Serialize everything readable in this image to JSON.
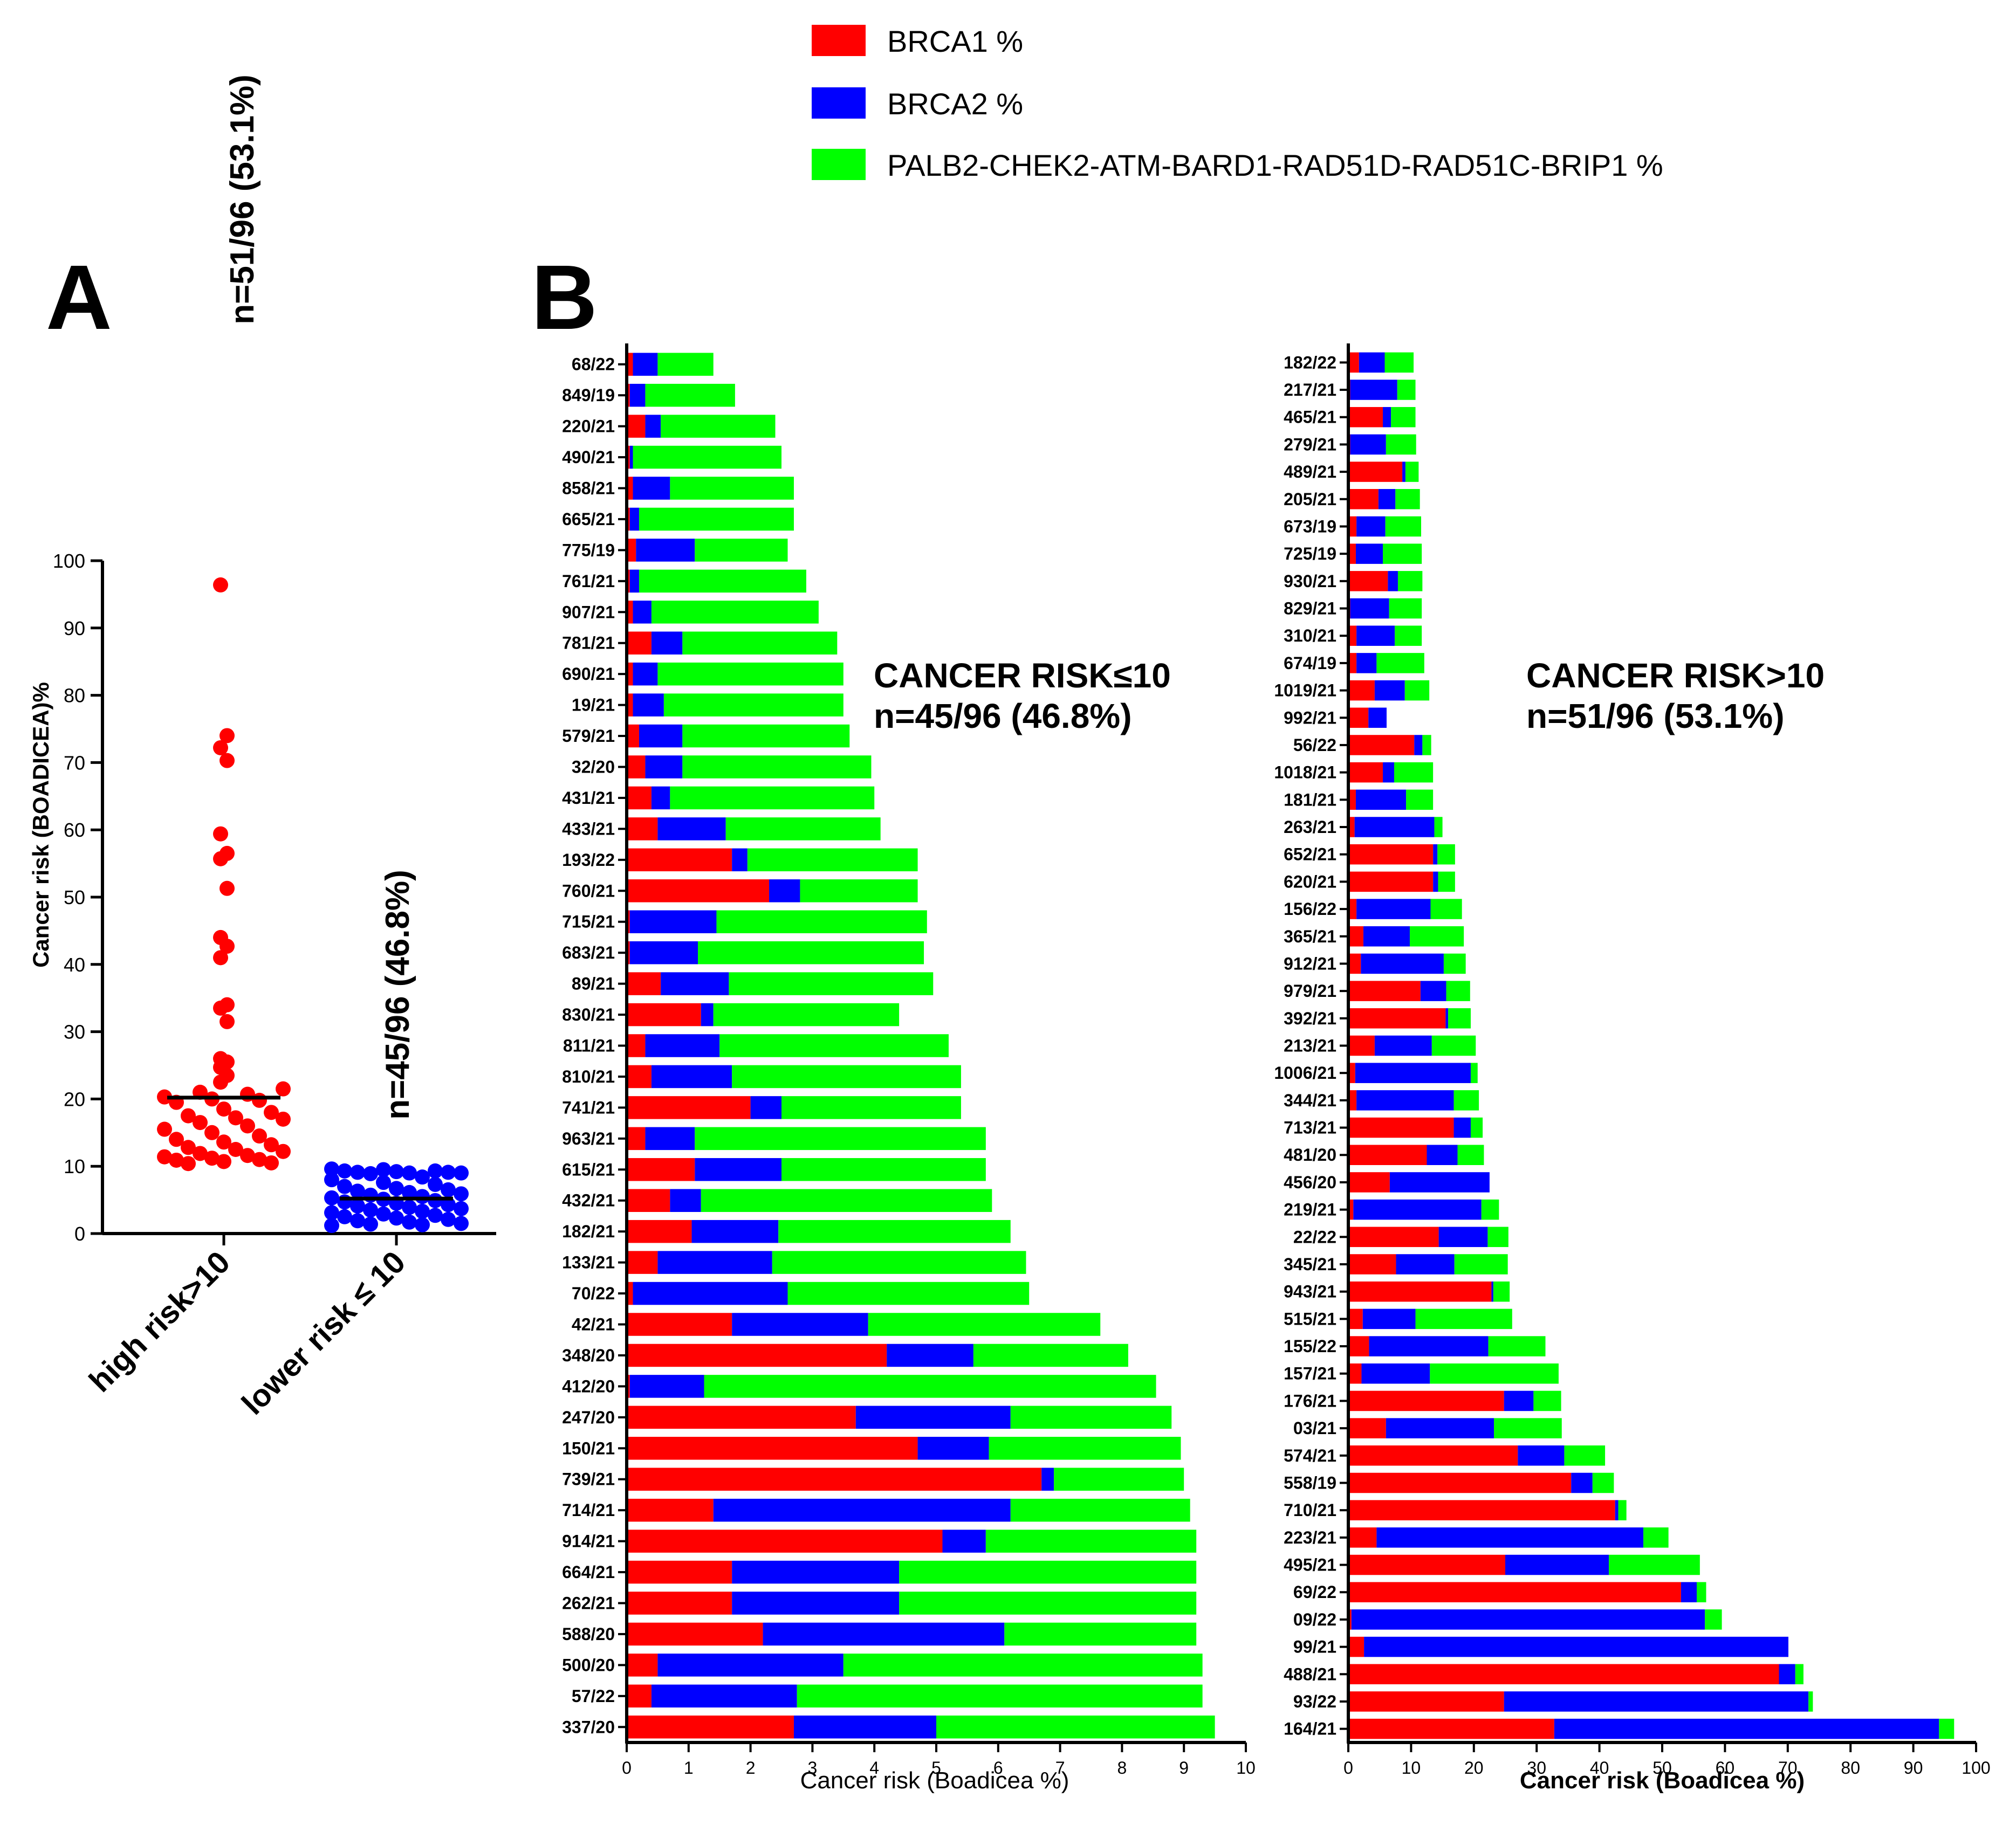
{
  "colors": {
    "brca1": "#ff0000",
    "brca2": "#0000ff",
    "other": "#00ff00",
    "axis": "#000000"
  },
  "legend": {
    "brca1": "BRCA1 %",
    "brca2": "BRCA2 %",
    "other": "PALB2-CHEK2-ATM-BARD1-RAD51D-RAD51C-BRIP1 %"
  },
  "panel_a_letter": "A",
  "panel_b_letter": "B",
  "panel_b": {
    "low_annotation": {
      "line1": "CANCER RISK≤10",
      "line2": "n=45/96 (46.8%)"
    },
    "high_annotation": {
      "line1": "CANCER RISK>10",
      "line2": "n=51/96 (53.1%)"
    }
  },
  "chart_data": [
    {
      "type": "scatter",
      "id": "panel-a",
      "ylabel": "Cancer risk (BOADICEA)%",
      "ylim": [
        0,
        100
      ],
      "yticks": [
        0,
        10,
        20,
        30,
        40,
        50,
        60,
        70,
        80,
        90,
        100
      ],
      "categories": [
        "high risk>10",
        "lower risk ≤ 10"
      ],
      "group_labels": [
        "n=51/96 (53.1%)",
        "n=45/96 (46.8%)"
      ],
      "medians": [
        20.2,
        5.2
      ],
      "series": [
        {
          "name": "high risk>10",
          "color": "#ff0000",
          "values": [
            96.4,
            74,
            72.2,
            70.3,
            59.4,
            56.5,
            55.7,
            51.3,
            44,
            42.7,
            41,
            34,
            33.5,
            31.5,
            26,
            25.5,
            24.7,
            23.5,
            22.5,
            21.5,
            21,
            20.7,
            20.3,
            20,
            19.8,
            19.5,
            18.5,
            18,
            17.5,
            17.2,
            17,
            16.5,
            16,
            15.5,
            15,
            14.5,
            14,
            13.6,
            13.2,
            12.8,
            12.5,
            12.2,
            11.9,
            11.6,
            11.4,
            11.2,
            11,
            10.9,
            10.7,
            10.5,
            10.4
          ]
        },
        {
          "name": "lower risk ≤ 10",
          "color": "#0000ff",
          "values": [
            9.6,
            9.5,
            9.3,
            9.3,
            9.2,
            9.1,
            9.1,
            9.0,
            9.0,
            8.9,
            8.4,
            8.0,
            7.6,
            7.3,
            7.0,
            6.7,
            6.5,
            6.3,
            6.1,
            5.9,
            5.7,
            5.5,
            5.3,
            5.1,
            4.9,
            4.7,
            4.5,
            4.3,
            4.1,
            3.9,
            3.7,
            3.5,
            3.3,
            3.1,
            2.9,
            2.7,
            2.5,
            2.3,
            2.1,
            1.9,
            1.7,
            1.5,
            1.4,
            1.3,
            1.2
          ]
        }
      ]
    },
    {
      "type": "bar",
      "orientation": "horizontal",
      "stacked": true,
      "id": "panel-b-low",
      "xlabel": "Cancer risk (Boadicea %)",
      "xlim": [
        0,
        10
      ],
      "xticks": [
        0,
        1,
        2,
        3,
        4,
        5,
        6,
        7,
        8,
        9,
        10
      ],
      "categories": [
        "68/22",
        "849/19",
        "220/21",
        "490/21",
        "858/21",
        "665/21",
        "775/19",
        "761/21",
        "907/21",
        "781/21",
        "690/21",
        "19/21",
        "579/21",
        "32/20",
        "431/21",
        "433/21",
        "193/22",
        "760/21",
        "715/21",
        "683/21",
        "89/21",
        "830/21",
        "811/21",
        "810/21",
        "741/21",
        "963/21",
        "615/21",
        "432/21",
        "182/21",
        "133/21",
        "70/22",
        "42/21",
        "348/20",
        "412/20",
        "247/20",
        "150/21",
        "739/21",
        "714/21",
        "914/21",
        "664/21",
        "262/21",
        "588/20",
        "500/20",
        "57/22",
        "337/20"
      ],
      "series": [
        {
          "name": "BRCA1 %",
          "color": "#ff0000",
          "values": [
            0.1,
            0.05,
            0.3,
            0.05,
            0.1,
            0.05,
            0.15,
            0.05,
            0.1,
            0.4,
            0.1,
            0.1,
            0.2,
            0.3,
            0.4,
            0.5,
            1.7,
            2.3,
            0.05,
            0.05,
            0.55,
            1.2,
            0.3,
            0.4,
            2.0,
            0.3,
            1.1,
            0.7,
            1.05,
            0.5,
            0.1,
            1.7,
            4.2,
            0.05,
            3.7,
            4.7,
            6.7,
            1.4,
            5.1,
            1.7,
            1.7,
            2.2,
            0.5,
            0.4,
            2.7
          ]
        },
        {
          "name": "BRCA2 %",
          "color": "#0000ff",
          "values": [
            0.4,
            0.25,
            0.25,
            0.05,
            0.6,
            0.15,
            0.95,
            0.15,
            0.3,
            0.5,
            0.4,
            0.5,
            0.7,
            0.6,
            0.3,
            1.1,
            0.25,
            0.5,
            1.4,
            1.1,
            1.1,
            0.2,
            1.2,
            1.3,
            0.5,
            0.8,
            1.4,
            0.5,
            1.4,
            1.85,
            2.5,
            2.2,
            1.4,
            1.2,
            2.5,
            1.15,
            0.2,
            4.8,
            0.7,
            2.7,
            2.7,
            3.9,
            3.0,
            2.35,
            2.3
          ]
        },
        {
          "name": "PALB2-CHEK2-ATM-BARD1-RAD51D-RAD51C-BRIP1 %",
          "color": "#00ff00",
          "values": [
            0.9,
            1.45,
            1.85,
            2.4,
            2.0,
            2.5,
            1.5,
            2.7,
            2.7,
            2.5,
            3.0,
            2.9,
            2.7,
            3.05,
            3.3,
            2.5,
            2.75,
            1.9,
            3.4,
            3.65,
            3.3,
            3.0,
            3.7,
            3.7,
            2.9,
            4.7,
            3.3,
            4.7,
            3.75,
            4.1,
            3.9,
            3.75,
            2.5,
            7.3,
            2.6,
            3.1,
            2.1,
            2.9,
            3.4,
            4.8,
            4.8,
            3.1,
            5.8,
            6.55,
            4.5
          ]
        }
      ]
    },
    {
      "type": "bar",
      "orientation": "horizontal",
      "stacked": true,
      "id": "panel-b-high",
      "xlabel": "Cancer risk (Boadicea %)",
      "xlim": [
        0,
        100
      ],
      "xticks": [
        0,
        10,
        20,
        30,
        40,
        50,
        60,
        70,
        80,
        90,
        100
      ],
      "categories": [
        "182/22",
        "217/21",
        "465/21",
        "279/21",
        "489/21",
        "205/21",
        "673/19",
        "725/19",
        "930/21",
        "829/21",
        "310/21",
        "674/19",
        "1019/21",
        "992/21",
        "56/22",
        "1018/21",
        "181/21",
        "263/21",
        "652/21",
        "620/21",
        "156/22",
        "365/21",
        "912/21",
        "979/21",
        "392/21",
        "213/21",
        "1006/21",
        "344/21",
        "713/21",
        "481/20",
        "456/20",
        "219/21",
        "22/22",
        "345/21",
        "943/21",
        "515/21",
        "155/22",
        "157/21",
        "176/21",
        "03/21",
        "574/21",
        "558/19",
        "710/21",
        "223/21",
        "495/21",
        "69/22",
        "09/22",
        "99/21",
        "488/21",
        "93/22",
        "164/21"
      ],
      "series": [
        {
          "name": "BRCA1 %",
          "color": "#ff0000",
          "values": [
            1.7,
            0.3,
            5.5,
            0.3,
            8.6,
            4.8,
            1.3,
            1.2,
            6.3,
            0.3,
            1.3,
            1.3,
            4.2,
            3.2,
            10.5,
            5.5,
            1.2,
            1.0,
            13.5,
            13.5,
            1.3,
            2.4,
            2.0,
            11.5,
            15.5,
            4.2,
            1.1,
            1.3,
            16.8,
            12.5,
            6.6,
            0.8,
            14.4,
            7.6,
            22.8,
            2.3,
            3.3,
            2.1,
            24.8,
            6.0,
            27.0,
            35.5,
            42.5,
            4.5,
            25.0,
            53.0,
            0.5,
            2.5,
            68.6,
            24.8,
            32.8
          ]
        },
        {
          "name": "BRCA2 %",
          "color": "#0000ff",
          "values": [
            4.1,
            7.5,
            1.3,
            5.7,
            0.5,
            2.7,
            4.6,
            4.3,
            1.6,
            6.2,
            6.1,
            3.2,
            4.8,
            2.9,
            1.3,
            1.8,
            8.0,
            12.7,
            0.7,
            0.8,
            11.8,
            7.4,
            13.2,
            4.1,
            0.4,
            9.1,
            18.4,
            15.5,
            2.7,
            4.9,
            15.9,
            20.4,
            7.8,
            9.3,
            0.3,
            8.4,
            19.0,
            10.9,
            4.7,
            17.2,
            7.4,
            3.4,
            0.5,
            42.5,
            16.5,
            2.5,
            56.3,
            67.6,
            2.6,
            48.5,
            61.3
          ]
        },
        {
          "name": "PALB2-CHEK2-ATM-BARD1-RAD51D-RAD51C-BRIP1 %",
          "color": "#00ff00",
          "values": [
            4.6,
            2.9,
            3.9,
            4.8,
            2.1,
            3.9,
            5.7,
            6.2,
            3.9,
            5.2,
            4.3,
            7.6,
            3.9,
            0.0,
            1.4,
            6.2,
            4.3,
            1.3,
            2.8,
            2.7,
            5.0,
            8.6,
            3.5,
            3.8,
            3.6,
            7.0,
            1.1,
            4.0,
            1.9,
            4.2,
            0.0,
            2.8,
            3.3,
            8.5,
            2.6,
            15.4,
            9.1,
            20.5,
            4.4,
            10.8,
            6.5,
            3.4,
            1.3,
            4.0,
            14.5,
            1.5,
            2.7,
            0.0,
            1.3,
            0.7,
            2.4
          ]
        }
      ]
    }
  ]
}
